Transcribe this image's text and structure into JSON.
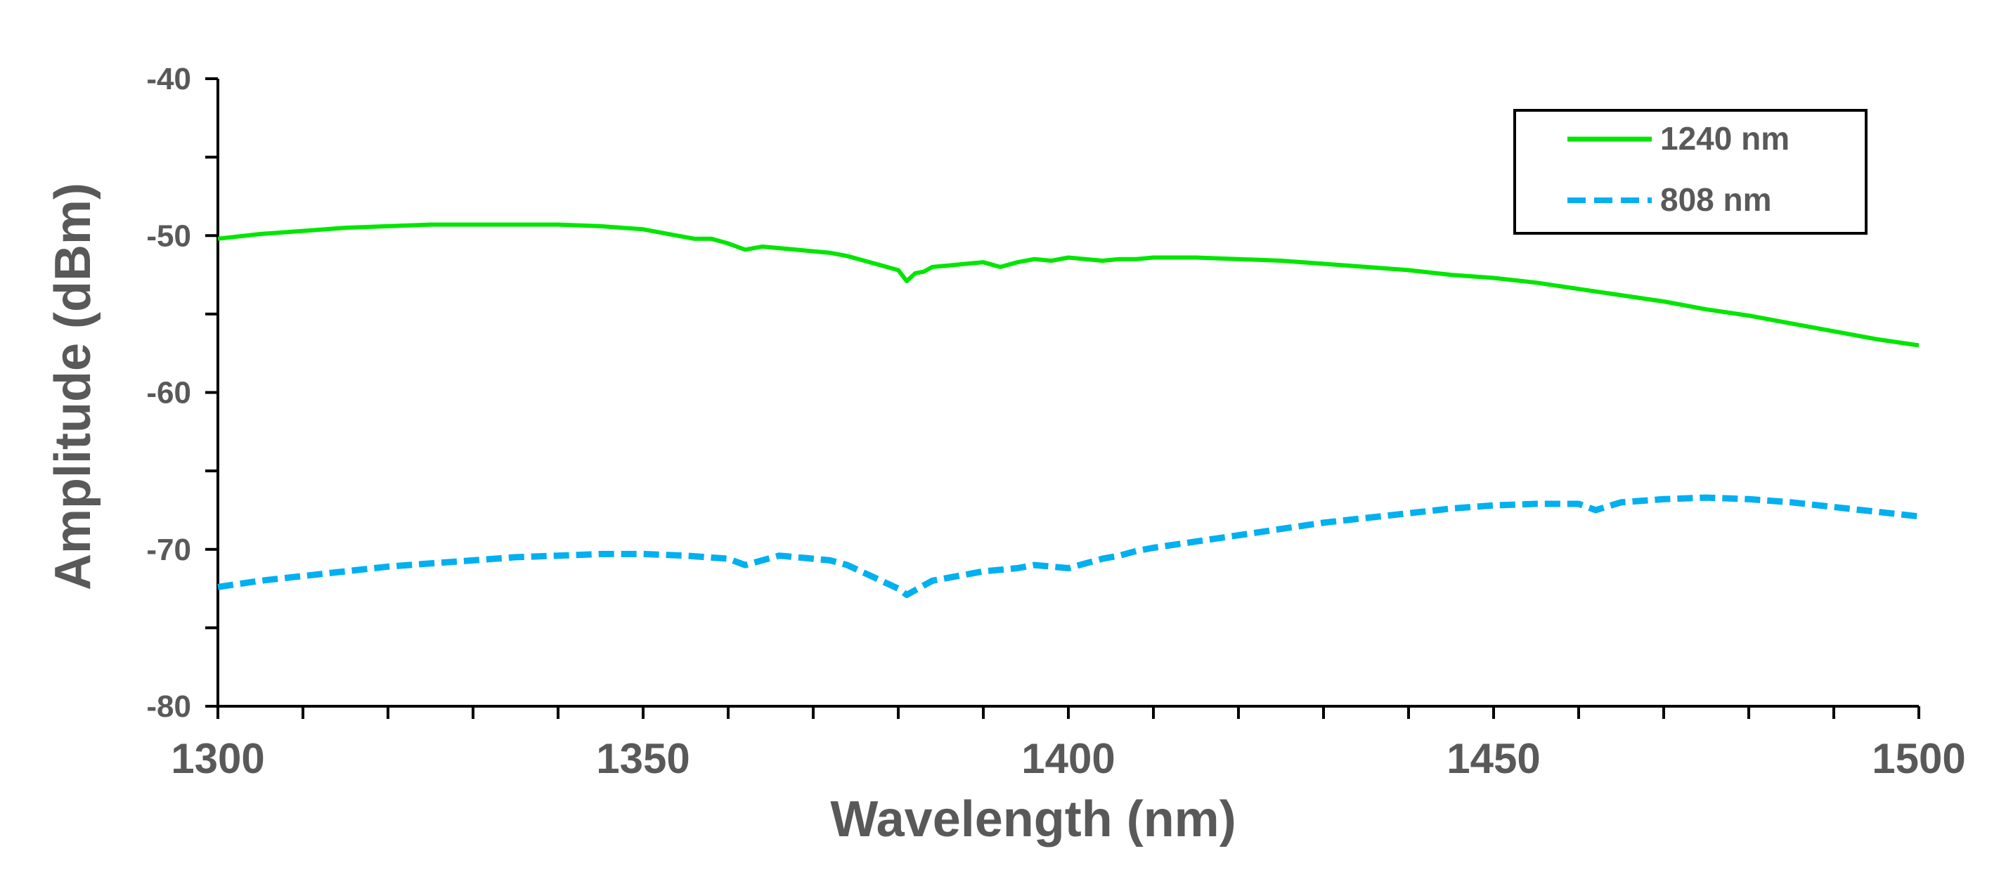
{
  "chart_data": {
    "type": "line",
    "title": "",
    "xlabel": "Wavelength (nm)",
    "ylabel": "Amplitude (dBm)",
    "xlim": [
      1300,
      1500
    ],
    "ylim": [
      -80,
      -40
    ],
    "x_ticks": [
      1300,
      1350,
      1400,
      1450,
      1500
    ],
    "x_tick_labels": [
      "1300",
      "1350",
      "1400",
      "1450",
      "1500"
    ],
    "x_minor_step": 10,
    "y_ticks": [
      -40,
      -50,
      -60,
      -70,
      -80
    ],
    "y_tick_labels": [
      "-40",
      "-50",
      "-60",
      "-70",
      "-80"
    ],
    "y_minor_step": 5,
    "grid": false,
    "legend_position": "top-right",
    "series": [
      {
        "name": "1240 nm",
        "color": "#00E600",
        "style": "solid",
        "x": [
          1300,
          1305,
          1310,
          1315,
          1320,
          1325,
          1330,
          1335,
          1340,
          1345,
          1350,
          1352,
          1354,
          1356,
          1358,
          1360,
          1362,
          1364,
          1366,
          1368,
          1370,
          1372,
          1374,
          1376,
          1378,
          1380,
          1381,
          1382,
          1383,
          1384,
          1386,
          1388,
          1390,
          1392,
          1394,
          1396,
          1398,
          1400,
          1402,
          1404,
          1406,
          1408,
          1410,
          1415,
          1420,
          1425,
          1430,
          1435,
          1440,
          1445,
          1450,
          1455,
          1460,
          1465,
          1470,
          1475,
          1480,
          1485,
          1490,
          1495,
          1500
        ],
        "y": [
          -50.2,
          -49.9,
          -49.7,
          -49.5,
          -49.4,
          -49.3,
          -49.3,
          -49.3,
          -49.3,
          -49.4,
          -49.6,
          -49.8,
          -50.0,
          -50.2,
          -50.2,
          -50.5,
          -50.9,
          -50.7,
          -50.8,
          -50.9,
          -51.0,
          -51.1,
          -51.3,
          -51.6,
          -51.9,
          -52.2,
          -52.9,
          -52.4,
          -52.3,
          -52.0,
          -51.9,
          -51.8,
          -51.7,
          -52.0,
          -51.7,
          -51.5,
          -51.6,
          -51.4,
          -51.5,
          -51.6,
          -51.5,
          -51.5,
          -51.4,
          -51.4,
          -51.5,
          -51.6,
          -51.8,
          -52.0,
          -52.2,
          -52.5,
          -52.7,
          -53.0,
          -53.4,
          -53.8,
          -54.2,
          -54.7,
          -55.1,
          -55.6,
          -56.1,
          -56.6,
          -57.0
        ]
      },
      {
        "name": "808 nm",
        "color": "#00B0F0",
        "style": "dashed",
        "x": [
          1300,
          1305,
          1310,
          1315,
          1320,
          1325,
          1330,
          1335,
          1340,
          1345,
          1350,
          1355,
          1360,
          1362,
          1364,
          1366,
          1368,
          1370,
          1372,
          1374,
          1376,
          1378,
          1380,
          1381,
          1382,
          1383,
          1384,
          1386,
          1388,
          1390,
          1392,
          1394,
          1396,
          1398,
          1400,
          1402,
          1404,
          1406,
          1408,
          1410,
          1415,
          1420,
          1425,
          1430,
          1435,
          1440,
          1445,
          1450,
          1455,
          1460,
          1462,
          1465,
          1470,
          1475,
          1480,
          1485,
          1490,
          1495,
          1500
        ],
        "y": [
          -72.4,
          -72.0,
          -71.7,
          -71.4,
          -71.1,
          -70.9,
          -70.7,
          -70.5,
          -70.4,
          -70.3,
          -70.3,
          -70.4,
          -70.6,
          -71.0,
          -70.7,
          -70.4,
          -70.5,
          -70.6,
          -70.7,
          -71.0,
          -71.5,
          -72.0,
          -72.5,
          -72.9,
          -72.6,
          -72.3,
          -72.0,
          -71.8,
          -71.6,
          -71.4,
          -71.3,
          -71.2,
          -71.0,
          -71.1,
          -71.2,
          -70.9,
          -70.6,
          -70.4,
          -70.1,
          -69.9,
          -69.5,
          -69.1,
          -68.7,
          -68.3,
          -68.0,
          -67.7,
          -67.4,
          -67.2,
          -67.1,
          -67.1,
          -67.5,
          -67.0,
          -66.8,
          -66.7,
          -66.8,
          -67.0,
          -67.3,
          -67.6,
          -67.9
        ]
      }
    ]
  }
}
